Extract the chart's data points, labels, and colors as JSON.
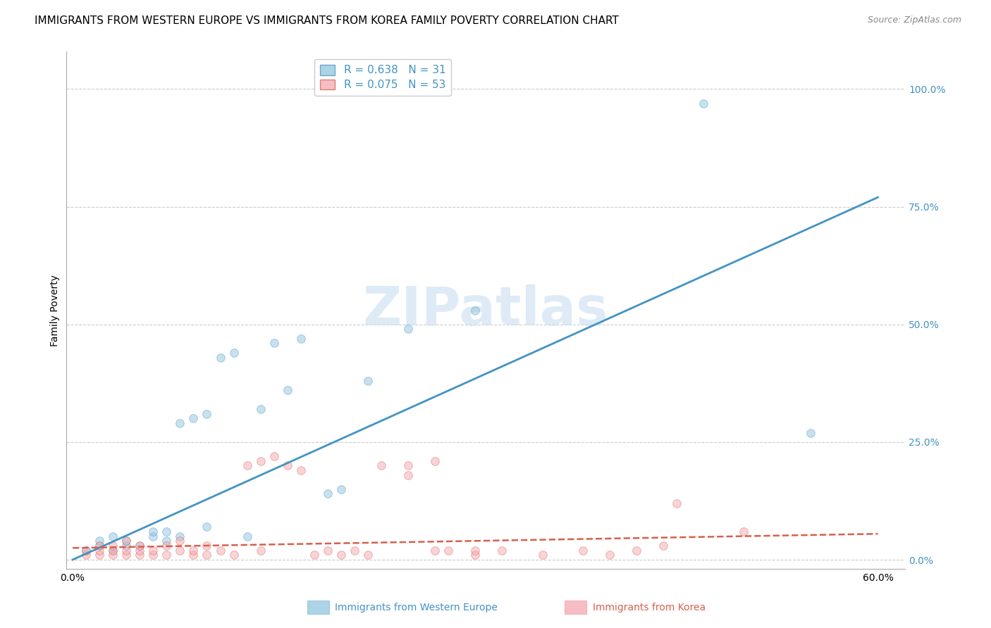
{
  "title": "IMMIGRANTS FROM WESTERN EUROPE VS IMMIGRANTS FROM KOREA FAMILY POVERTY CORRELATION CHART",
  "source": "Source: ZipAtlas.com",
  "ylabel": "Family Poverty",
  "ytick_labels": [
    "0.0%",
    "25.0%",
    "50.0%",
    "75.0%",
    "100.0%"
  ],
  "ytick_values": [
    0.0,
    0.25,
    0.5,
    0.75,
    1.0
  ],
  "xtick_labels": [
    "0.0%",
    "60.0%"
  ],
  "xtick_values": [
    0.0,
    0.6
  ],
  "xlim": [
    -0.005,
    0.62
  ],
  "ylim": [
    -0.02,
    1.08
  ],
  "legend_blue_R": "R = 0.638",
  "legend_blue_N": "N = 31",
  "legend_pink_R": "R = 0.075",
  "legend_pink_N": "N = 53",
  "legend_blue_label": "Immigrants from Western Europe",
  "legend_pink_label": "Immigrants from Korea",
  "blue_color": "#92c5de",
  "pink_color": "#f4a9b0",
  "line_blue_color": "#4393c3",
  "line_pink_color": "#d6604d",
  "tick_color": "#4393c3",
  "watermark_text": "ZIPatlas",
  "watermark_color": "#c8dff0",
  "blue_scatter_x": [
    0.01,
    0.02,
    0.02,
    0.03,
    0.03,
    0.04,
    0.04,
    0.05,
    0.06,
    0.06,
    0.07,
    0.07,
    0.08,
    0.08,
    0.09,
    0.1,
    0.1,
    0.11,
    0.12,
    0.13,
    0.14,
    0.15,
    0.16,
    0.17,
    0.19,
    0.2,
    0.22,
    0.25,
    0.3,
    0.55,
    0.47
  ],
  "blue_scatter_y": [
    0.02,
    0.03,
    0.04,
    0.02,
    0.05,
    0.03,
    0.04,
    0.03,
    0.05,
    0.06,
    0.04,
    0.06,
    0.05,
    0.29,
    0.3,
    0.07,
    0.31,
    0.43,
    0.44,
    0.05,
    0.32,
    0.46,
    0.36,
    0.47,
    0.14,
    0.15,
    0.38,
    0.49,
    0.53,
    0.27,
    0.97
  ],
  "pink_scatter_x": [
    0.01,
    0.01,
    0.02,
    0.02,
    0.02,
    0.03,
    0.03,
    0.03,
    0.04,
    0.04,
    0.04,
    0.05,
    0.05,
    0.05,
    0.06,
    0.06,
    0.07,
    0.07,
    0.08,
    0.08,
    0.09,
    0.09,
    0.1,
    0.1,
    0.11,
    0.12,
    0.13,
    0.14,
    0.14,
    0.15,
    0.16,
    0.17,
    0.18,
    0.19,
    0.2,
    0.21,
    0.22,
    0.23,
    0.25,
    0.27,
    0.28,
    0.3,
    0.32,
    0.35,
    0.38,
    0.4,
    0.42,
    0.44,
    0.5,
    0.25,
    0.27,
    0.3,
    0.45
  ],
  "pink_scatter_y": [
    0.01,
    0.02,
    0.01,
    0.02,
    0.03,
    0.01,
    0.02,
    0.03,
    0.01,
    0.02,
    0.04,
    0.01,
    0.02,
    0.03,
    0.01,
    0.02,
    0.01,
    0.03,
    0.02,
    0.04,
    0.01,
    0.02,
    0.01,
    0.03,
    0.02,
    0.01,
    0.2,
    0.21,
    0.02,
    0.22,
    0.2,
    0.19,
    0.01,
    0.02,
    0.01,
    0.02,
    0.01,
    0.2,
    0.18,
    0.02,
    0.02,
    0.01,
    0.02,
    0.01,
    0.02,
    0.01,
    0.02,
    0.03,
    0.06,
    0.2,
    0.21,
    0.02,
    0.12
  ],
  "blue_line_x0": 0.0,
  "blue_line_x1": 0.6,
  "blue_line_y0": 0.0,
  "blue_line_y1": 0.77,
  "pink_line_x0": 0.0,
  "pink_line_x1": 0.6,
  "pink_line_y0": 0.025,
  "pink_line_y1": 0.055,
  "grid_color": "#cccccc",
  "background_color": "#ffffff",
  "title_fontsize": 11,
  "source_fontsize": 9,
  "axis_label_fontsize": 10,
  "tick_fontsize": 10,
  "scatter_size": 70,
  "scatter_alpha": 0.5,
  "scatter_linewidth": 0.6,
  "watermark_fontsize": 55
}
